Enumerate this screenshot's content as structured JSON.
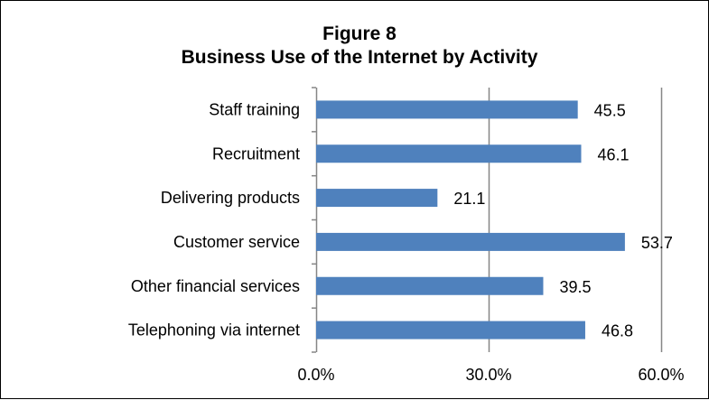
{
  "chart_data": {
    "type": "bar",
    "orientation": "horizontal",
    "title": "Figure 8",
    "subtitle": "Business Use of the Internet by Activity",
    "categories": [
      "Staff training",
      "Recruitment",
      "Delivering products",
      "Customer service",
      "Other financial services",
      "Telephoning via internet"
    ],
    "values": [
      45.5,
      46.1,
      21.1,
      53.7,
      39.5,
      46.8
    ],
    "value_labels": [
      "45.5",
      "46.1",
      "21.1",
      "53.7",
      "39.5",
      "46.8"
    ],
    "xlim": [
      0,
      60
    ],
    "xticks": [
      0,
      30,
      60
    ],
    "xtick_labels": [
      "0.0%",
      "30.0%",
      "60.0%"
    ],
    "xlabel": "",
    "ylabel": "",
    "grid": "vertical",
    "legend": "none",
    "bar_color": "#4f81bd",
    "gridline_color": "#868686"
  }
}
